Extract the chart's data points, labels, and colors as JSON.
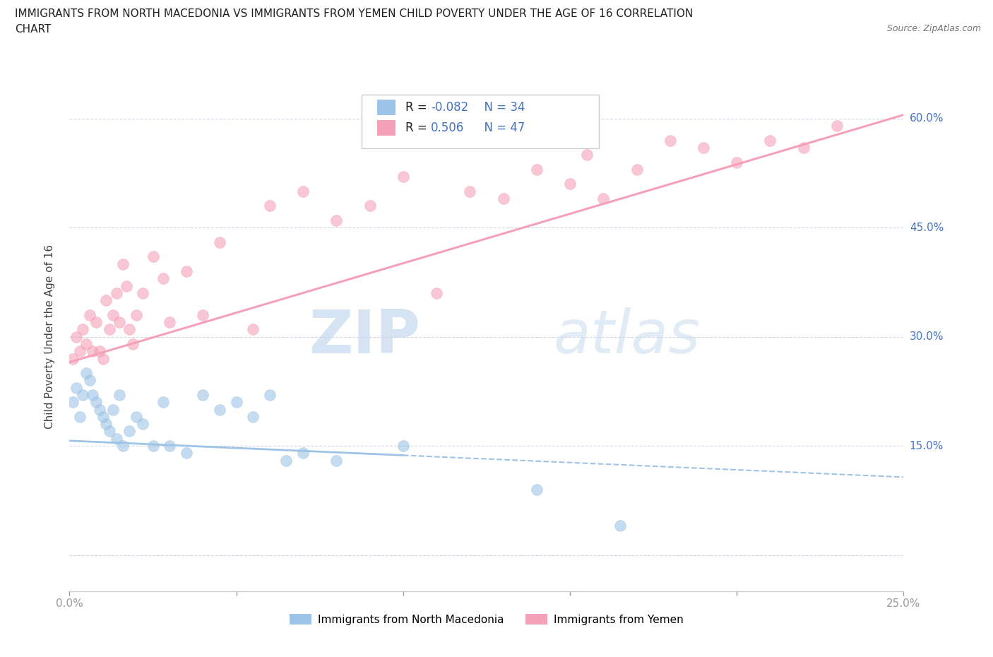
{
  "title_line1": "IMMIGRANTS FROM NORTH MACEDONIA VS IMMIGRANTS FROM YEMEN CHILD POVERTY UNDER THE AGE OF 16 CORRELATION",
  "title_line2": "CHART",
  "source_text": "Source: ZipAtlas.com",
  "ylabel": "Child Poverty Under the Age of 16",
  "xlim": [
    0.0,
    0.25
  ],
  "ylim": [
    -0.05,
    0.65
  ],
  "ytick_vals": [
    0.0,
    0.15,
    0.3,
    0.45,
    0.6
  ],
  "ytick_labels_right": [
    "",
    "15.0%",
    "30.0%",
    "45.0%",
    "60.0%"
  ],
  "xtick_vals": [
    0.0,
    0.05,
    0.1,
    0.15,
    0.2,
    0.25
  ],
  "xtick_labels": [
    "0.0%",
    "",
    "",
    "",
    "",
    "25.0%"
  ],
  "color_macedonia": "#9dc3e6",
  "color_yemen": "#f4a0b8",
  "R_macedonia": -0.082,
  "N_macedonia": 34,
  "R_yemen": 0.506,
  "N_yemen": 47,
  "watermark_zip": "ZIP",
  "watermark_atlas": "atlas",
  "watermark_color_zip": "#c5d8ee",
  "watermark_color_atlas": "#c5d8ee",
  "legend_label_macedonia": "Immigrants from North Macedonia",
  "legend_label_yemen": "Immigrants from Yemen",
  "scatter_macedonia_x": [
    0.001,
    0.002,
    0.003,
    0.004,
    0.005,
    0.006,
    0.007,
    0.008,
    0.009,
    0.01,
    0.011,
    0.012,
    0.013,
    0.014,
    0.015,
    0.016,
    0.018,
    0.02,
    0.022,
    0.025,
    0.028,
    0.03,
    0.035,
    0.04,
    0.045,
    0.05,
    0.055,
    0.06,
    0.065,
    0.07,
    0.08,
    0.1,
    0.14,
    0.165
  ],
  "scatter_macedonia_y": [
    0.21,
    0.23,
    0.19,
    0.22,
    0.25,
    0.24,
    0.22,
    0.21,
    0.2,
    0.19,
    0.18,
    0.17,
    0.2,
    0.16,
    0.22,
    0.15,
    0.17,
    0.19,
    0.18,
    0.15,
    0.21,
    0.15,
    0.14,
    0.22,
    0.2,
    0.21,
    0.19,
    0.22,
    0.13,
    0.14,
    0.13,
    0.15,
    0.09,
    0.04
  ],
  "scatter_yemen_x": [
    0.001,
    0.002,
    0.003,
    0.004,
    0.005,
    0.006,
    0.007,
    0.008,
    0.009,
    0.01,
    0.011,
    0.012,
    0.013,
    0.014,
    0.015,
    0.016,
    0.017,
    0.018,
    0.019,
    0.02,
    0.022,
    0.025,
    0.028,
    0.03,
    0.035,
    0.04,
    0.045,
    0.055,
    0.06,
    0.07,
    0.08,
    0.09,
    0.1,
    0.11,
    0.12,
    0.13,
    0.14,
    0.15,
    0.155,
    0.16,
    0.17,
    0.18,
    0.19,
    0.2,
    0.21,
    0.22,
    0.23
  ],
  "scatter_yemen_y": [
    0.27,
    0.3,
    0.28,
    0.31,
    0.29,
    0.33,
    0.28,
    0.32,
    0.28,
    0.27,
    0.35,
    0.31,
    0.33,
    0.36,
    0.32,
    0.4,
    0.37,
    0.31,
    0.29,
    0.33,
    0.36,
    0.41,
    0.38,
    0.32,
    0.39,
    0.33,
    0.43,
    0.31,
    0.48,
    0.5,
    0.46,
    0.48,
    0.52,
    0.36,
    0.5,
    0.49,
    0.53,
    0.51,
    0.55,
    0.49,
    0.53,
    0.57,
    0.56,
    0.54,
    0.57,
    0.56,
    0.59
  ],
  "reg_line_mac_x0": 0.0,
  "reg_line_mac_x1": 0.25,
  "reg_line_mac_y0": 0.157,
  "reg_line_mac_y1": 0.107,
  "reg_line_mac_solid_x1": 0.1,
  "reg_line_yem_x0": 0.0,
  "reg_line_yem_x1": 0.25,
  "reg_line_yem_y0": 0.265,
  "reg_line_yem_y1": 0.605
}
